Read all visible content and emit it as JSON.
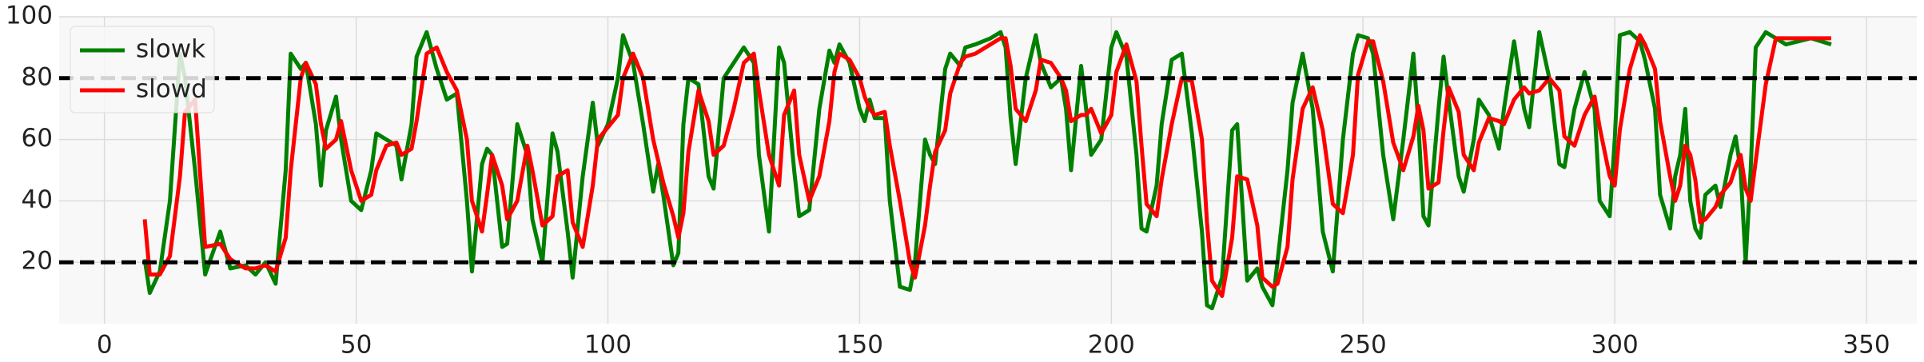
{
  "chart_data": {
    "type": "line",
    "x": [
      8,
      9,
      11,
      13,
      15,
      16,
      18,
      20,
      23,
      25,
      28,
      30,
      32,
      34,
      36,
      37,
      39,
      40,
      42,
      43,
      44,
      46,
      47,
      49,
      51,
      53,
      54,
      56,
      58,
      59,
      61,
      62,
      64,
      66,
      68,
      70,
      72,
      73,
      75,
      76,
      77,
      79,
      80,
      82,
      84,
      85,
      87,
      89,
      90,
      92,
      93,
      95,
      97,
      98,
      100,
      102,
      103,
      105,
      107,
      109,
      110,
      111,
      113,
      114,
      115,
      116,
      118,
      120,
      121,
      123,
      125,
      127,
      129,
      130,
      132,
      134,
      135,
      137,
      138,
      140,
      142,
      144,
      145,
      146,
      148,
      150,
      151,
      152,
      153,
      155,
      156,
      158,
      160,
      161,
      163,
      164,
      165,
      167,
      168,
      170,
      171,
      173,
      176,
      178,
      179,
      180,
      181,
      183,
      185,
      186,
      188,
      190,
      191,
      192,
      194,
      195,
      196,
      198,
      200,
      201,
      203,
      205,
      206,
      207,
      209,
      210,
      212,
      214,
      216,
      218,
      219,
      220,
      222,
      224,
      225,
      227,
      229,
      230,
      232,
      233,
      235,
      236,
      238,
      240,
      242,
      244,
      246,
      248,
      249,
      251,
      252,
      254,
      256,
      258,
      260,
      261,
      262,
      263,
      265,
      266,
      267,
      269,
      270,
      272,
      273,
      275,
      277,
      278,
      280,
      282,
      283,
      285,
      287,
      289,
      290,
      292,
      294,
      296,
      297,
      299,
      300,
      301,
      303,
      305,
      306,
      308,
      309,
      311,
      312,
      313,
      314,
      315,
      316,
      317,
      318,
      320,
      321,
      323,
      324,
      325,
      326,
      327,
      328,
      330,
      332,
      334,
      339,
      343
    ],
    "series": [
      {
        "name": "slowk",
        "color": "#008000",
        "values": [
          21,
          10,
          17,
          40,
          88,
          80,
          50,
          16,
          30,
          18,
          19,
          16,
          20,
          13,
          50,
          88,
          83,
          85,
          65,
          45,
          63,
          74,
          60,
          40,
          37,
          50,
          62,
          60,
          58,
          47,
          65,
          87,
          95,
          83,
          73,
          75,
          40,
          17,
          52,
          57,
          55,
          25,
          26,
          65,
          55,
          34,
          20,
          62,
          56,
          30,
          15,
          48,
          72,
          58,
          65,
          80,
          94,
          85,
          65,
          43,
          52,
          42,
          19,
          23,
          65,
          80,
          78,
          48,
          44,
          80,
          85,
          90,
          85,
          55,
          30,
          90,
          85,
          50,
          35,
          37,
          70,
          89,
          85,
          91,
          85,
          70,
          66,
          73,
          67,
          67,
          40,
          12,
          11,
          20,
          60,
          55,
          52,
          83,
          88,
          84,
          90,
          91,
          93,
          95,
          90,
          67,
          52,
          80,
          94,
          85,
          77,
          80,
          70,
          50,
          84,
          70,
          55,
          60,
          90,
          95,
          87,
          55,
          31,
          30,
          45,
          65,
          86,
          88,
          62,
          30,
          6,
          5,
          15,
          63,
          65,
          14,
          18,
          12,
          6,
          20,
          50,
          72,
          88,
          70,
          30,
          17,
          60,
          88,
          94,
          93,
          88,
          55,
          34,
          60,
          88,
          65,
          35,
          32,
          70,
          87,
          73,
          48,
          43,
          60,
          73,
          68,
          57,
          70,
          92,
          70,
          64,
          95,
          80,
          52,
          51,
          70,
          82,
          70,
          40,
          35,
          60,
          94,
          95,
          92,
          86,
          70,
          42,
          31,
          48,
          55,
          70,
          40,
          31,
          28,
          42,
          45,
          38,
          55,
          61,
          50,
          20,
          50,
          90,
          95,
          93,
          91,
          93,
          91
        ]
      },
      {
        "name": "slowd",
        "color": "#ff0000",
        "values": [
          34,
          16,
          16,
          22,
          48,
          69,
          73,
          25,
          26,
          21,
          18,
          18,
          19,
          17,
          28,
          50,
          80,
          85,
          78,
          65,
          57,
          60,
          66,
          50,
          40,
          42,
          50,
          58,
          59,
          55,
          57,
          66,
          88,
          90,
          82,
          76,
          60,
          40,
          30,
          42,
          55,
          45,
          34,
          40,
          58,
          50,
          32,
          35,
          48,
          50,
          33,
          25,
          45,
          60,
          64,
          68,
          80,
          88,
          80,
          60,
          53,
          46,
          35,
          28,
          36,
          56,
          76,
          66,
          55,
          58,
          70,
          85,
          88,
          76,
          55,
          45,
          68,
          76,
          55,
          40,
          48,
          66,
          82,
          88,
          86,
          80,
          74,
          70,
          68,
          69,
          58,
          40,
          20,
          15,
          32,
          45,
          56,
          63,
          75,
          85,
          87,
          88,
          91,
          93,
          93,
          84,
          70,
          66,
          76,
          86,
          85,
          80,
          76,
          66,
          68,
          68,
          70,
          62,
          68,
          82,
          91,
          79,
          58,
          39,
          35,
          47,
          65,
          80,
          79,
          60,
          33,
          14,
          9,
          28,
          48,
          47,
          32,
          15,
          12,
          13,
          25,
          47,
          70,
          77,
          63,
          39,
          36,
          55,
          81,
          92,
          92,
          79,
          59,
          50,
          61,
          71,
          63,
          44,
          46,
          63,
          77,
          69,
          55,
          50,
          59,
          67,
          66,
          65,
          73,
          77,
          75,
          76,
          80,
          76,
          61,
          58,
          68,
          74,
          64,
          48,
          45,
          63,
          83,
          94,
          91,
          83,
          66,
          48,
          40,
          45,
          58,
          55,
          47,
          33,
          34,
          38,
          42,
          46,
          51,
          55,
          44,
          40,
          53,
          78,
          93,
          93,
          93,
          93
        ]
      }
    ],
    "hlines": [
      20,
      80
    ],
    "xlim": [
      -9,
      360
    ],
    "xticks": [
      0,
      50,
      100,
      150,
      200,
      250,
      300,
      350
    ],
    "ylim": [
      0,
      100
    ],
    "yticks": [
      20,
      40,
      60,
      80,
      100
    ],
    "grid": true,
    "legend": "upper-left"
  }
}
